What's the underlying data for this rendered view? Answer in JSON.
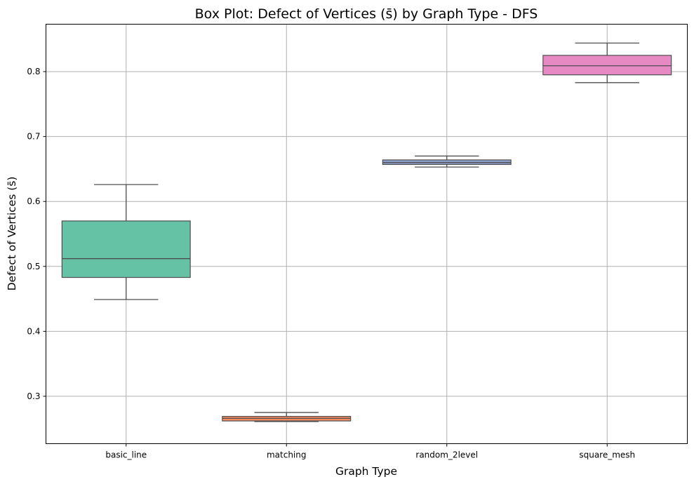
{
  "chart_data": {
    "type": "box",
    "title": "Box Plot: Defect of Vertices (s̄) by Graph Type - DFS",
    "xlabel": "Graph Type",
    "ylabel": "Defect of Vertices (s̄)",
    "ylim": [
      0.227,
      0.873
    ],
    "yticks": [
      0.3,
      0.4,
      0.5,
      0.6,
      0.7,
      0.8
    ],
    "ytick_labels": [
      "0.3",
      "0.4",
      "0.5",
      "0.6",
      "0.7",
      "0.8"
    ],
    "grid": true,
    "categories": [
      "basic_line",
      "matching",
      "random_2level",
      "square_mesh"
    ],
    "boxes": [
      {
        "category": "basic_line",
        "whislo": 0.449,
        "q1": 0.483,
        "med": 0.512,
        "q3": 0.57,
        "whishi": 0.626,
        "color": "#66c2a5"
      },
      {
        "category": "matching",
        "whislo": 0.261,
        "q1": 0.262,
        "med": 0.266,
        "q3": 0.269,
        "whishi": 0.275,
        "color": "#fc8d62"
      },
      {
        "category": "random_2level",
        "whislo": 0.653,
        "q1": 0.657,
        "med": 0.66,
        "q3": 0.664,
        "whishi": 0.67,
        "color": "#8da0cb"
      },
      {
        "category": "square_mesh",
        "whislo": 0.783,
        "q1": 0.795,
        "med": 0.809,
        "q3": 0.825,
        "whishi": 0.844,
        "color": "#e78ac3"
      }
    ]
  }
}
